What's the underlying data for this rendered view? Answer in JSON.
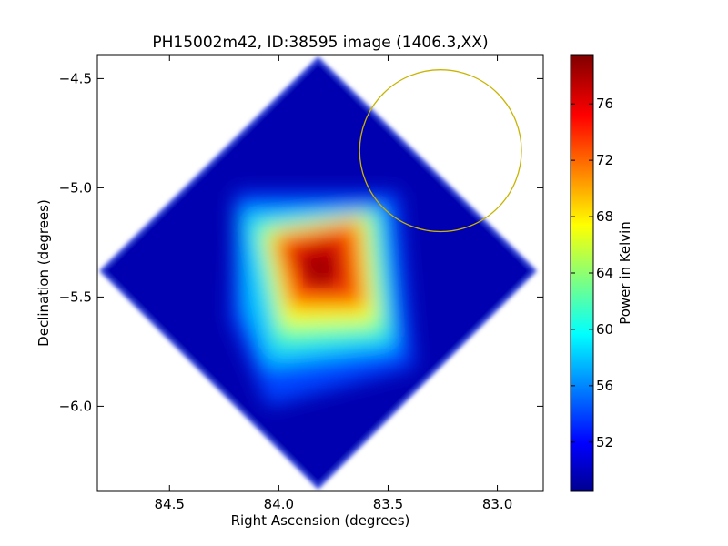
{
  "chart_data": {
    "type": "heatmap",
    "title": "PH15002m42, ID:38595 image (1406.3,XX)",
    "xlabel": "Right Ascension (degrees)",
    "ylabel": "Declination (degrees)",
    "x_reversed": true,
    "xlim": [
      84.83,
      82.79
    ],
    "ylim": [
      -6.39,
      -4.39
    ],
    "xticks": [
      84.5,
      84.0,
      83.5,
      83.0
    ],
    "xtick_labels": [
      "84.5",
      "84.0",
      "83.5",
      "83.0"
    ],
    "yticks": [
      -4.5,
      -5.0,
      -5.5,
      -6.0
    ],
    "ytick_labels": [
      "−4.5",
      "−5.0",
      "−5.5",
      "−6.0"
    ],
    "grid": false,
    "colormap": "jet",
    "colorbar": {
      "label": "Power in Kelvin",
      "range": [
        48.5,
        79.5
      ],
      "ticks": [
        52,
        56,
        60,
        64,
        68,
        72,
        76
      ],
      "tick_labels": [
        "52",
        "56",
        "60",
        "64",
        "68",
        "72",
        "76"
      ]
    },
    "footprint": {
      "shape": "rotated-square",
      "center": {
        "ra": 83.82,
        "dec": -5.38
      },
      "vertices": [
        {
          "ra": 83.82,
          "dec": -4.41
        },
        {
          "ra": 82.83,
          "dec": -5.38
        },
        {
          "ra": 83.82,
          "dec": -6.37
        },
        {
          "ra": 84.81,
          "dec": -5.38
        }
      ],
      "background_value": 49.5
    },
    "emission": {
      "peak": {
        "ra": 83.82,
        "dec": -5.39,
        "value": 79
      },
      "levels": [
        {
          "value": 54,
          "polygon": [
            {
              "ra": 84.2,
              "dec": -5.02
            },
            {
              "ra": 83.45,
              "dec": -5.02
            },
            {
              "ra": 83.38,
              "dec": -5.82
            },
            {
              "ra": 84.05,
              "dec": -6.0
            },
            {
              "ra": 84.22,
              "dec": -5.6
            }
          ]
        },
        {
          "value": 58,
          "polygon": [
            {
              "ra": 84.18,
              "dec": -5.1
            },
            {
              "ra": 83.52,
              "dec": -5.09
            },
            {
              "ra": 83.46,
              "dec": -5.74
            },
            {
              "ra": 84.05,
              "dec": -5.82
            },
            {
              "ra": 84.15,
              "dec": -5.56
            }
          ]
        },
        {
          "value": 62,
          "polygon": [
            {
              "ra": 84.12,
              "dec": -5.16
            },
            {
              "ra": 83.55,
              "dec": -5.1
            },
            {
              "ra": 83.5,
              "dec": -5.68
            },
            {
              "ra": 84.01,
              "dec": -5.73
            }
          ]
        },
        {
          "value": 67,
          "polygon": [
            {
              "ra": 84.07,
              "dec": -5.2
            },
            {
              "ra": 83.6,
              "dec": -5.12
            },
            {
              "ra": 83.55,
              "dec": -5.62
            },
            {
              "ra": 83.98,
              "dec": -5.64
            }
          ]
        },
        {
          "value": 72,
          "polygon": [
            {
              "ra": 84.03,
              "dec": -5.22
            },
            {
              "ra": 83.63,
              "dec": -5.15
            },
            {
              "ra": 83.6,
              "dec": -5.55
            },
            {
              "ra": 83.95,
              "dec": -5.55
            }
          ]
        },
        {
          "value": 76,
          "polygon": [
            {
              "ra": 83.98,
              "dec": -5.26
            },
            {
              "ra": 83.7,
              "dec": -5.2
            },
            {
              "ra": 83.67,
              "dec": -5.48
            },
            {
              "ra": 83.9,
              "dec": -5.48
            }
          ]
        },
        {
          "value": 78,
          "polygon": [
            {
              "ra": 83.92,
              "dec": -5.3
            },
            {
              "ra": 83.74,
              "dec": -5.26
            },
            {
              "ra": 83.72,
              "dec": -5.44
            },
            {
              "ra": 83.86,
              "dec": -5.44
            }
          ]
        }
      ]
    },
    "annotation": {
      "shape": "circle",
      "center": {
        "ra": 83.26,
        "dec": -4.83
      },
      "radius_deg": 0.37,
      "color": "#c8b400"
    }
  }
}
